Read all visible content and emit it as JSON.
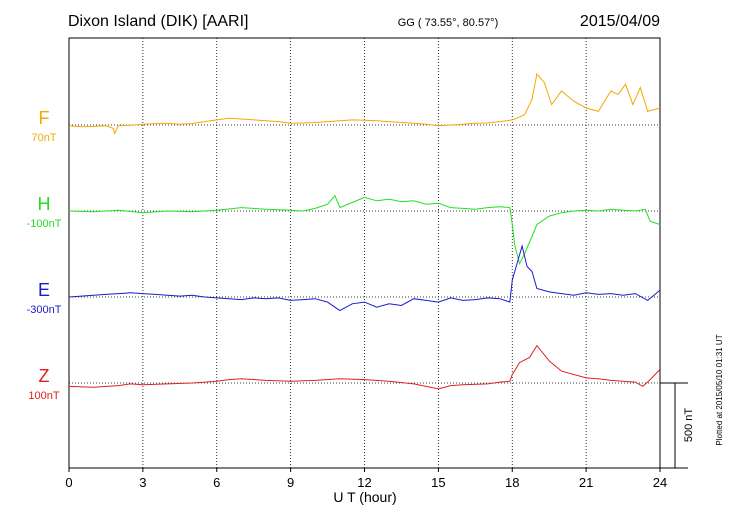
{
  "header": {
    "station": "Dixon Island (DIK)  [AARI]",
    "coords": "GG ( 73.55°,  80.57°)",
    "date": "2015/04/09"
  },
  "xaxis": {
    "label": "U T (hour)"
  },
  "scale_bar": {
    "label": "500 nT"
  },
  "footer": {
    "plotted": "Plotted at 2015/05/10 01:31  UT"
  },
  "chart_data": {
    "type": "line",
    "title": "Dixon Island (DIK)  [AARI]",
    "xlabel": "U T (hour)",
    "xlim": [
      0,
      24
    ],
    "xticks": [
      0,
      3,
      6,
      9,
      12,
      15,
      18,
      21,
      24
    ],
    "grid": true,
    "series": [
      {
        "name": "F",
        "offset_label": "70nT",
        "color": "#f2a900",
        "baseline_row": 0,
        "x": [
          0,
          0.5,
          1,
          1.5,
          1.8,
          1.85,
          2,
          2.5,
          3,
          3.5,
          4,
          4.5,
          5,
          5.5,
          6,
          6.5,
          7,
          7.5,
          8,
          8.5,
          9,
          9.5,
          10,
          10.5,
          11,
          11.5,
          12,
          12.5,
          13,
          13.5,
          14,
          14.5,
          15,
          15.5,
          16,
          16.5,
          17,
          17.5,
          18,
          18.5,
          18.8,
          19,
          19.3,
          19.6,
          20,
          20.5,
          21,
          21.5,
          22,
          22.3,
          22.6,
          22.9,
          23.2,
          23.5,
          24
        ],
        "y": [
          -5,
          -10,
          -8,
          -5,
          -20,
          -50,
          -5,
          -2,
          5,
          8,
          10,
          5,
          8,
          20,
          30,
          40,
          35,
          30,
          25,
          20,
          10,
          12,
          15,
          20,
          25,
          30,
          28,
          25,
          20,
          15,
          10,
          5,
          -5,
          0,
          5,
          10,
          12,
          20,
          30,
          60,
          150,
          300,
          250,
          120,
          200,
          140,
          100,
          80,
          200,
          180,
          240,
          120,
          220,
          80,
          100
        ]
      },
      {
        "name": "H",
        "offset_label": "-100nT",
        "color": "#22e022",
        "baseline_row": 1,
        "x": [
          0,
          1,
          2,
          3,
          4,
          5,
          6,
          7,
          8,
          9,
          9.5,
          10,
          10.5,
          10.8,
          11,
          11.5,
          12,
          12.5,
          13,
          13.5,
          14,
          14.5,
          15,
          15.5,
          16,
          16.5,
          17,
          17.5,
          17.9,
          18,
          18.1,
          18.3,
          18.5,
          18.8,
          19,
          19.5,
          20,
          20.5,
          21,
          21.5,
          22,
          22.5,
          23,
          23.4,
          23.6,
          24
        ],
        "y": [
          0,
          -5,
          5,
          -10,
          0,
          -5,
          5,
          20,
          10,
          5,
          0,
          15,
          40,
          90,
          20,
          50,
          80,
          60,
          70,
          55,
          60,
          40,
          45,
          20,
          15,
          10,
          20,
          25,
          20,
          -80,
          -200,
          -310,
          -250,
          -150,
          -80,
          -30,
          -10,
          0,
          5,
          0,
          10,
          5,
          0,
          10,
          -60,
          -80
        ]
      },
      {
        "name": "E",
        "offset_label": "-300nT",
        "color": "#1a1acc",
        "baseline_row": 2,
        "x": [
          0,
          0.5,
          1,
          1.5,
          2,
          2.5,
          3,
          3.5,
          4,
          4.5,
          5,
          5.5,
          6,
          6.5,
          7,
          7.5,
          8,
          8.5,
          9,
          9.5,
          10,
          10.5,
          10.8,
          11,
          11.5,
          12,
          12.5,
          13,
          13.5,
          14,
          14.5,
          15,
          15.5,
          16,
          16.5,
          17,
          17.5,
          17.9,
          18,
          18.2,
          18.4,
          18.6,
          18.8,
          19,
          19.5,
          20,
          20.5,
          21,
          21.5,
          22,
          22.5,
          23,
          23.5,
          24
        ],
        "y": [
          0,
          5,
          10,
          15,
          20,
          25,
          20,
          15,
          10,
          5,
          10,
          0,
          -5,
          -10,
          -15,
          -5,
          -10,
          -5,
          -20,
          -15,
          -10,
          -30,
          -60,
          -80,
          -40,
          -30,
          -60,
          -40,
          -50,
          -10,
          -20,
          -30,
          -5,
          -20,
          -15,
          -5,
          -10,
          -30,
          100,
          200,
          300,
          180,
          150,
          50,
          30,
          20,
          10,
          25,
          15,
          20,
          10,
          20,
          -20,
          40
        ]
      },
      {
        "name": "Z",
        "offset_label": "100nT",
        "color": "#e02020",
        "baseline_row": 3,
        "x": [
          0,
          1,
          2,
          2.5,
          3,
          4,
          5,
          6,
          6.5,
          7,
          8,
          9,
          10,
          11,
          12,
          13,
          14,
          14.5,
          15,
          15.5,
          16,
          17,
          17.5,
          17.9,
          18,
          18.3,
          18.7,
          19,
          19.5,
          20,
          21,
          21.5,
          22,
          23,
          23.3,
          23.6,
          24
        ],
        "y": [
          -20,
          -25,
          -15,
          -5,
          -10,
          -5,
          0,
          10,
          20,
          25,
          15,
          10,
          15,
          25,
          20,
          10,
          -5,
          -20,
          -35,
          -15,
          -10,
          -5,
          5,
          10,
          50,
          120,
          150,
          220,
          130,
          70,
          30,
          25,
          15,
          5,
          -20,
          20,
          80
        ]
      }
    ],
    "scale_bar_nT": 500
  }
}
